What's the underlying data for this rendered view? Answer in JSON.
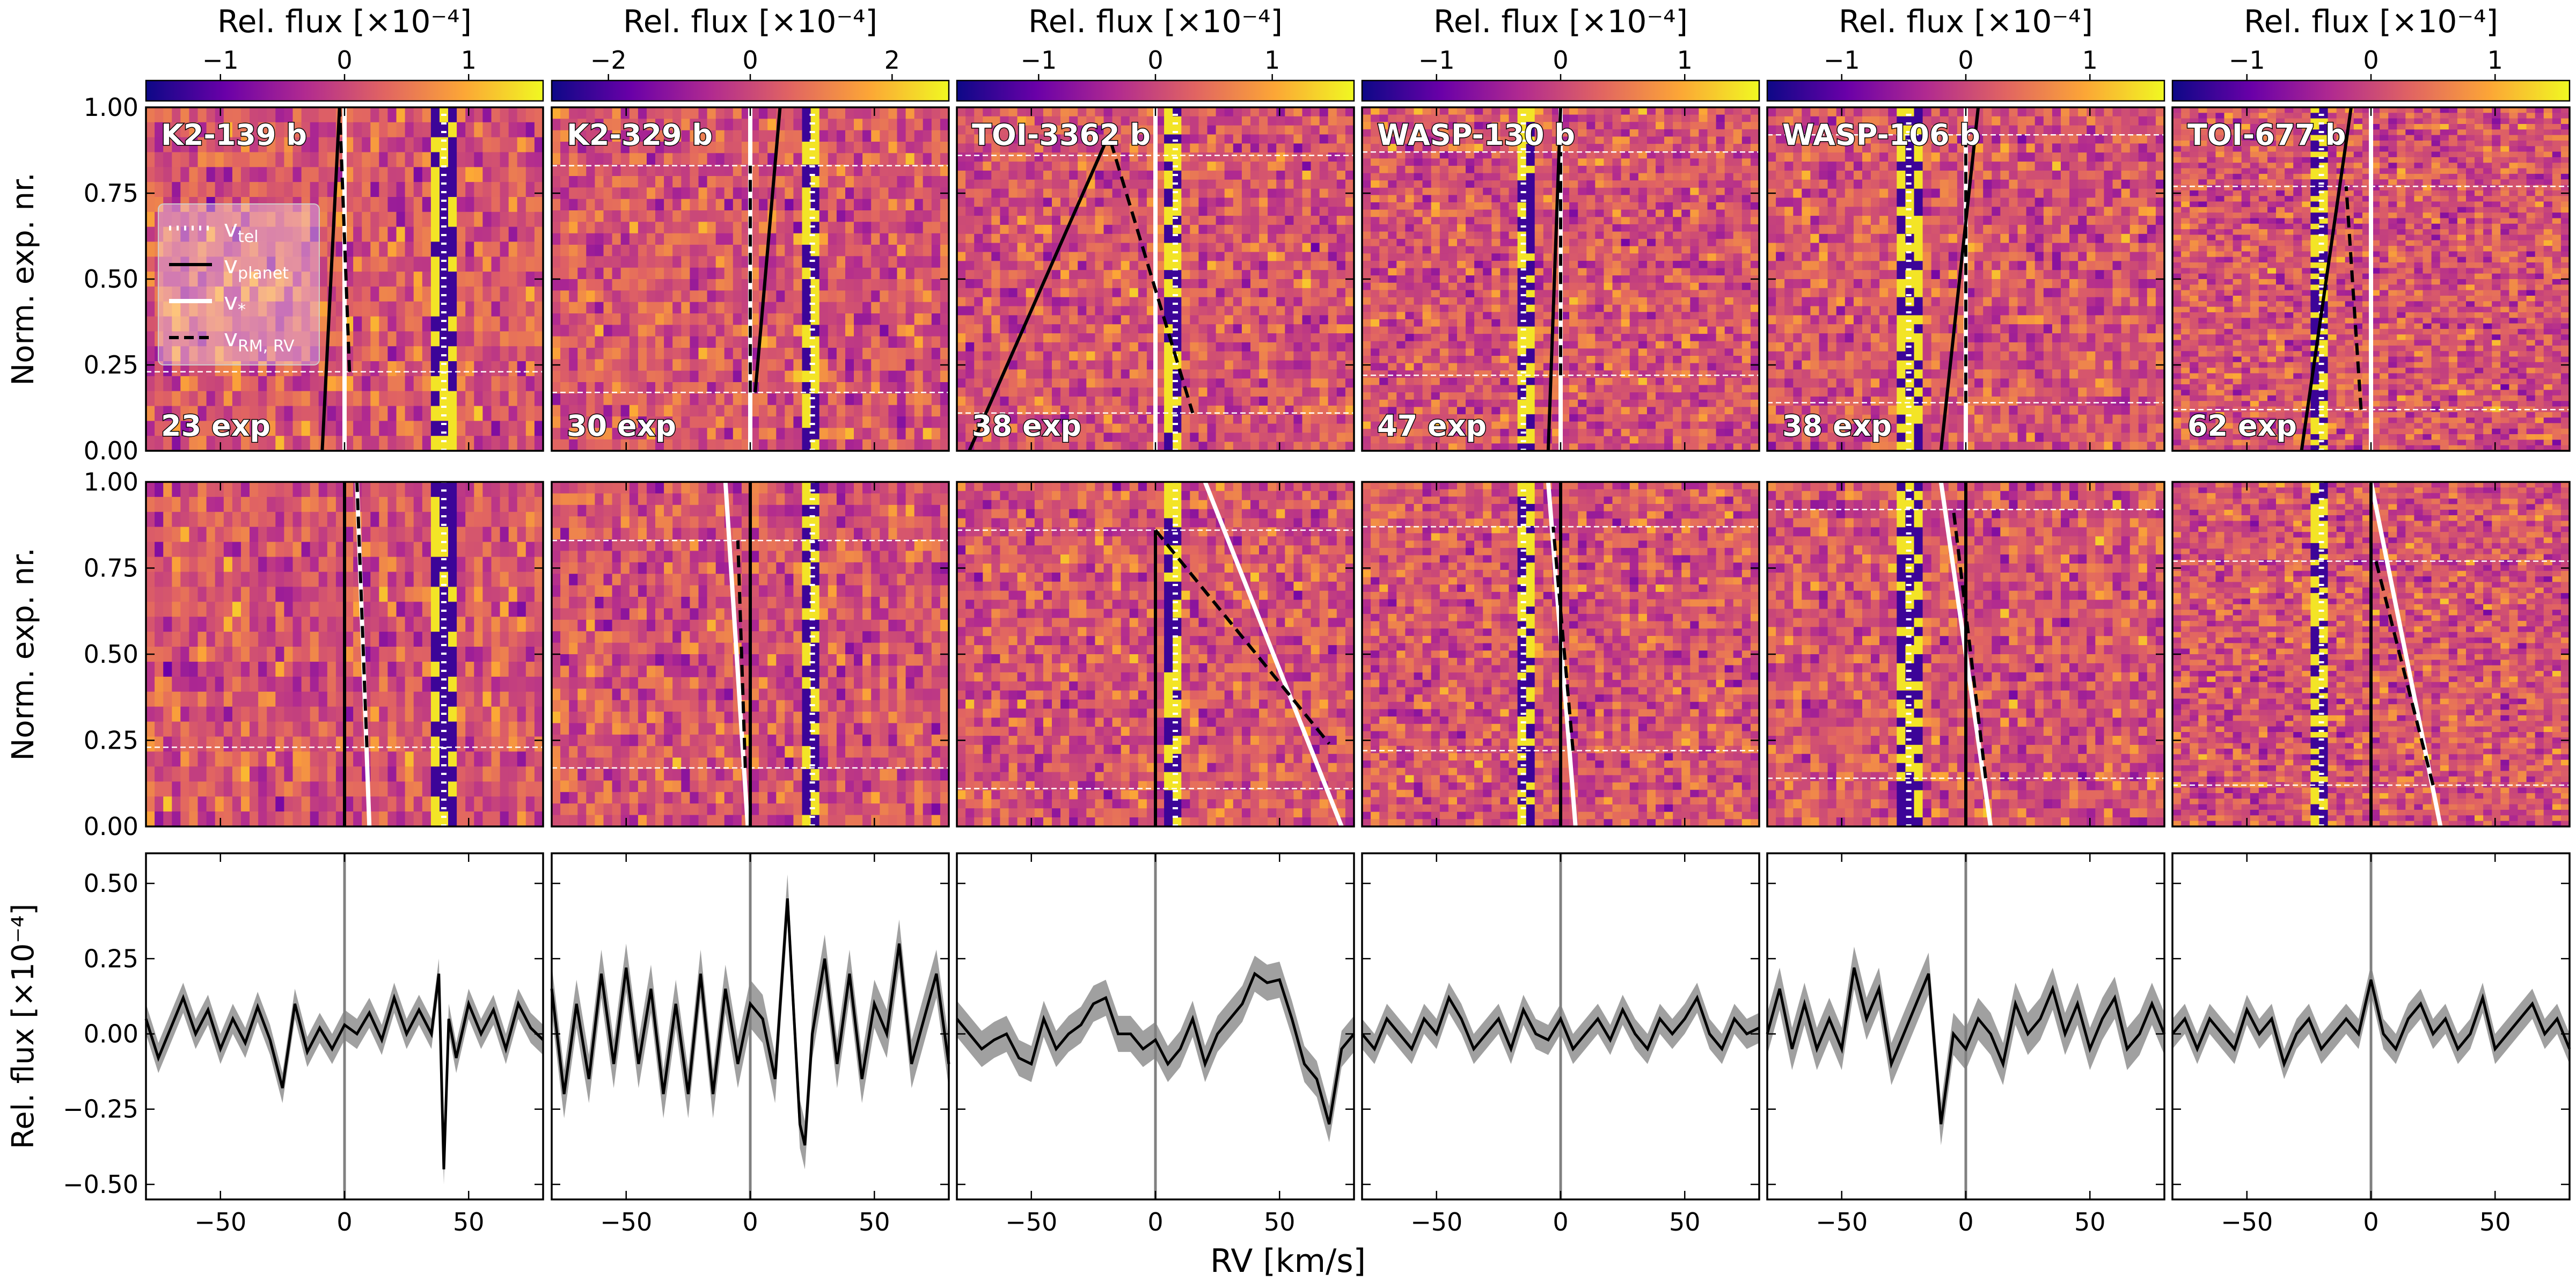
{
  "figure": {
    "colormap": [
      "#0d0887",
      "#6a00a8",
      "#b12a90",
      "#e16462",
      "#fca636",
      "#f0f921"
    ],
    "colors": {
      "tel": "#ffffff",
      "planet": "#000000",
      "star": "#ffffff",
      "rm": "#000000",
      "ccf": "#000000",
      "band": "#a0a0a0",
      "zero_line": "#808080"
    },
    "legend": [
      {
        "label": "v",
        "sub": "tel",
        "style": "dotted-white"
      },
      {
        "label": "v",
        "sub": "planet",
        "style": "solid-black"
      },
      {
        "label": "v",
        "sub": "*",
        "style": "solid-white"
      },
      {
        "label": "v",
        "sub": "RM, RV",
        "style": "dashed-black"
      }
    ]
  },
  "chart_data": [
    {
      "type": "heatmap",
      "panels": [
        {
          "name": "K2-139 b",
          "exposures": "23 exp",
          "cbar_ticks": [
            "−1",
            "0",
            "1"
          ],
          "cbar_range": [
            -1.6,
            1.6
          ],
          "contact_lines": [
            0.23,
            1.0
          ],
          "v_tel": [
            [
              40,
              0
            ],
            [
              40,
              1
            ]
          ],
          "v_planet_a": [
            [
              -9,
              0
            ],
            [
              -2,
              1
            ]
          ],
          "v_planet_b": [
            [
              0,
              0
            ],
            [
              0,
              1
            ]
          ],
          "v_star_a": [
            [
              0,
              0
            ],
            [
              0,
              1
            ]
          ],
          "v_star_b": [
            [
              10,
              0
            ],
            [
              5,
              1
            ]
          ],
          "v_rm_a": [
            [
              2,
              0.23
            ],
            [
              -2,
              1
            ]
          ],
          "v_rm_b": [
            [
              9,
              0.23
            ],
            [
              5,
              1
            ]
          ],
          "ccf": {
            "x": [
              -80,
              -75,
              -70,
              -65,
              -60,
              -55,
              -50,
              -45,
              -40,
              -35,
              -30,
              -25,
              -20,
              -15,
              -10,
              -5,
              0,
              5,
              10,
              15,
              20,
              25,
              30,
              35,
              38,
              40,
              42,
              45,
              50,
              55,
              60,
              65,
              70,
              75,
              80
            ],
            "y": [
              0.05,
              -0.08,
              0.02,
              0.12,
              0.0,
              0.08,
              -0.05,
              0.05,
              -0.03,
              0.09,
              -0.02,
              -0.18,
              0.1,
              -0.06,
              0.02,
              -0.05,
              0.03,
              0.0,
              0.07,
              -0.02,
              0.12,
              0.0,
              0.08,
              0.0,
              0.2,
              -0.45,
              0.05,
              -0.08,
              0.1,
              0.0,
              0.08,
              -0.05,
              0.1,
              0.02,
              -0.02
            ],
            "err": 0.05
          }
        },
        {
          "name": "K2-329 b",
          "exposures": "30 exp",
          "cbar_ticks": [
            "−2",
            "0",
            "2"
          ],
          "cbar_range": [
            -2.8,
            2.8
          ],
          "contact_lines": [
            0.17,
            0.83
          ],
          "v_tel": [
            [
              25,
              0
            ],
            [
              25,
              1
            ]
          ],
          "v_planet_a": [
            [
              2,
              0.17
            ],
            [
              12,
              1
            ]
          ],
          "v_planet_b": [
            [
              0,
              0
            ],
            [
              0,
              1
            ]
          ],
          "v_star_a": [
            [
              0,
              0
            ],
            [
              0,
              1
            ]
          ],
          "v_star_b": [
            [
              -1,
              0
            ],
            [
              -10,
              1
            ]
          ],
          "v_rm_a": [
            [
              0,
              0.17
            ],
            [
              0,
              0.83
            ]
          ],
          "v_rm_b": [
            [
              -2,
              0.17
            ],
            [
              -5,
              0.83
            ]
          ],
          "ccf": {
            "x": [
              -80,
              -75,
              -70,
              -65,
              -60,
              -55,
              -50,
              -45,
              -40,
              -35,
              -30,
              -25,
              -20,
              -15,
              -10,
              -5,
              0,
              5,
              10,
              15,
              20,
              22,
              25,
              30,
              35,
              40,
              45,
              50,
              55,
              60,
              65,
              70,
              75,
              80
            ],
            "y": [
              0.15,
              -0.2,
              0.1,
              -0.15,
              0.2,
              -0.1,
              0.22,
              -0.1,
              0.15,
              -0.2,
              0.1,
              -0.2,
              0.2,
              -0.2,
              0.15,
              -0.1,
              0.1,
              0.05,
              -0.15,
              0.45,
              -0.3,
              -0.37,
              0.0,
              0.25,
              -0.1,
              0.2,
              -0.15,
              0.1,
              0.0,
              0.3,
              -0.1,
              0.05,
              0.2,
              -0.1
            ],
            "err": 0.08
          }
        },
        {
          "name": "TOI-3362 b",
          "exposures": "38 exp",
          "cbar_ticks": [
            "−1",
            "0",
            "1"
          ],
          "cbar_range": [
            -1.7,
            1.7
          ],
          "contact_lines": [
            0.11,
            0.86
          ],
          "v_tel": [
            [
              8,
              0
            ],
            [
              8,
              1
            ]
          ],
          "v_planet_a": [
            [
              -75,
              0
            ],
            [
              -20,
              0.9
            ]
          ],
          "v_planet_b": [
            [
              0,
              0
            ],
            [
              0,
              0.86
            ]
          ],
          "v_star_a": [
            [
              0,
              0
            ],
            [
              0,
              1
            ]
          ],
          "v_star_b": [
            [
              75,
              0
            ],
            [
              20,
              1
            ]
          ],
          "v_rm_a": [
            [
              -18,
              0.9
            ],
            [
              15,
              0.11
            ]
          ],
          "v_rm_b": [
            [
              0,
              0.86
            ],
            [
              70,
              0.24
            ]
          ],
          "ccf": {
            "x": [
              -80,
              -75,
              -70,
              -65,
              -60,
              -55,
              -50,
              -45,
              -40,
              -35,
              -30,
              -25,
              -20,
              -15,
              -10,
              -5,
              0,
              5,
              10,
              15,
              20,
              25,
              30,
              35,
              40,
              45,
              50,
              55,
              60,
              65,
              70,
              75,
              80
            ],
            "y": [
              0.05,
              0.0,
              -0.05,
              -0.02,
              0.0,
              -0.08,
              -0.1,
              0.05,
              -0.05,
              0.0,
              0.03,
              0.1,
              0.12,
              0.0,
              0.0,
              -0.05,
              -0.02,
              -0.1,
              -0.05,
              0.05,
              -0.1,
              0.0,
              0.05,
              0.1,
              0.2,
              0.17,
              0.18,
              0.05,
              -0.1,
              -0.15,
              -0.3,
              -0.05,
              0.0
            ],
            "err": 0.06
          }
        },
        {
          "name": "WASP-130 b",
          "exposures": "47 exp",
          "cbar_ticks": [
            "−1",
            "0",
            "1"
          ],
          "cbar_range": [
            -1.6,
            1.6
          ],
          "contact_lines": [
            0.22,
            0.87
          ],
          "v_tel": [
            [
              -15,
              0
            ],
            [
              -15,
              1
            ]
          ],
          "v_planet_a": [
            [
              -5,
              0
            ],
            [
              0,
              1
            ]
          ],
          "v_planet_b": [
            [
              0,
              0
            ],
            [
              0,
              1
            ]
          ],
          "v_star_a": [
            [
              0,
              0
            ],
            [
              0,
              1
            ]
          ],
          "v_star_b": [
            [
              6,
              0
            ],
            [
              -5,
              1
            ]
          ],
          "v_rm_a": [
            [
              0,
              0.22
            ],
            [
              0,
              0.87
            ]
          ],
          "v_rm_b": [
            [
              5,
              0.22
            ],
            [
              -3,
              0.87
            ]
          ],
          "ccf": {
            "x": [
              -80,
              -75,
              -70,
              -65,
              -60,
              -55,
              -50,
              -45,
              -40,
              -35,
              -30,
              -25,
              -20,
              -15,
              -10,
              -5,
              0,
              5,
              10,
              15,
              20,
              25,
              30,
              35,
              40,
              45,
              50,
              55,
              60,
              65,
              70,
              75,
              80
            ],
            "y": [
              0.0,
              -0.05,
              0.05,
              0.0,
              -0.05,
              0.05,
              0.0,
              0.12,
              0.05,
              -0.05,
              0.0,
              0.05,
              -0.05,
              0.08,
              0.0,
              -0.02,
              0.05,
              -0.05,
              0.0,
              0.05,
              -0.02,
              0.08,
              0.0,
              -0.05,
              0.05,
              0.0,
              0.05,
              0.12,
              0.0,
              -0.05,
              0.05,
              0.0,
              0.02
            ],
            "err": 0.05
          }
        },
        {
          "name": "WASP-106 b",
          "exposures": "38 exp",
          "cbar_ticks": [
            "−1",
            "0",
            "1"
          ],
          "cbar_range": [
            -1.6,
            1.6
          ],
          "contact_lines": [
            0.14,
            0.92
          ],
          "v_tel": [
            [
              -23,
              0
            ],
            [
              -23,
              1
            ]
          ],
          "v_planet_a": [
            [
              -10,
              0
            ],
            [
              5,
              1
            ]
          ],
          "v_planet_b": [
            [
              0,
              0
            ],
            [
              0,
              1
            ]
          ],
          "v_star_a": [
            [
              0,
              0
            ],
            [
              0,
              1
            ]
          ],
          "v_star_b": [
            [
              10,
              0
            ],
            [
              -10,
              1
            ]
          ],
          "v_rm_a": [
            [
              0,
              0.14
            ],
            [
              0,
              0.92
            ]
          ],
          "v_rm_b": [
            [
              8,
              0.14
            ],
            [
              -5,
              0.92
            ]
          ],
          "ccf": {
            "x": [
              -80,
              -75,
              -70,
              -65,
              -60,
              -55,
              -50,
              -45,
              -40,
              -35,
              -30,
              -25,
              -20,
              -15,
              -10,
              -5,
              0,
              5,
              10,
              15,
              20,
              25,
              30,
              35,
              40,
              45,
              50,
              55,
              60,
              65,
              70,
              75,
              80
            ],
            "y": [
              0.0,
              0.15,
              -0.05,
              0.1,
              -0.05,
              0.05,
              -0.05,
              0.22,
              0.05,
              0.15,
              -0.1,
              0.0,
              0.1,
              0.2,
              -0.3,
              0.0,
              -0.05,
              0.05,
              0.0,
              -0.1,
              0.1,
              0.0,
              0.05,
              0.15,
              0.0,
              0.1,
              -0.05,
              0.05,
              0.12,
              -0.05,
              0.0,
              0.1,
              0.0
            ],
            "err": 0.07
          }
        },
        {
          "name": "TOI-677 b",
          "exposures": "62 exp",
          "cbar_ticks": [
            "−1",
            "0",
            "1"
          ],
          "cbar_range": [
            -1.6,
            1.6
          ],
          "contact_lines": [
            0.12,
            0.77
          ],
          "v_tel": [
            [
              -20,
              0
            ],
            [
              -20,
              1
            ]
          ],
          "v_planet_a": [
            [
              -28,
              0
            ],
            [
              -8,
              1
            ]
          ],
          "v_planet_b": [
            [
              0,
              0
            ],
            [
              0,
              1
            ]
          ],
          "v_star_a": [
            [
              0,
              0
            ],
            [
              0,
              1
            ]
          ],
          "v_star_b": [
            [
              28,
              0
            ],
            [
              0,
              1
            ]
          ],
          "v_rm_a": [
            [
              -4,
              0.12
            ],
            [
              -10,
              0.77
            ]
          ],
          "v_rm_b": [
            [
              25,
              0.12
            ],
            [
              2,
              0.77
            ]
          ],
          "ccf": {
            "x": [
              -80,
              -75,
              -70,
              -65,
              -60,
              -55,
              -50,
              -45,
              -40,
              -35,
              -30,
              -25,
              -20,
              -15,
              -10,
              -5,
              0,
              5,
              10,
              15,
              20,
              25,
              30,
              35,
              40,
              45,
              50,
              55,
              60,
              65,
              70,
              75,
              80
            ],
            "y": [
              0.0,
              0.05,
              -0.05,
              0.05,
              0.0,
              -0.05,
              0.08,
              0.0,
              0.05,
              -0.1,
              0.0,
              0.05,
              -0.05,
              0.0,
              0.05,
              0.0,
              0.18,
              0.0,
              -0.05,
              0.05,
              0.1,
              0.0,
              0.05,
              -0.05,
              0.0,
              0.12,
              -0.05,
              0.0,
              0.05,
              0.1,
              0.0,
              0.05,
              -0.05
            ],
            "err": 0.05
          }
        }
      ],
      "x_ticks": [
        -50,
        0,
        50
      ],
      "x_tick_labels": [
        "−50",
        "0",
        "50"
      ],
      "xlim": [
        -80,
        80
      ],
      "xlabel": "RV [km/s]",
      "cbar_label": "Rel. flux [×10⁻⁴]",
      "heatmap_ylabel": "Norm. exp. nr.",
      "heatmap_yticks": [
        "0.00",
        "0.25",
        "0.50",
        "0.75",
        "1.00"
      ],
      "ccf_ylabel": "Rel. flux [×10⁻⁴]",
      "ccf_yticks": [
        "−0.50",
        "−0.25",
        "0.00",
        "0.25",
        "0.50"
      ],
      "ccf_ylim": [
        -0.55,
        0.6
      ]
    }
  ]
}
